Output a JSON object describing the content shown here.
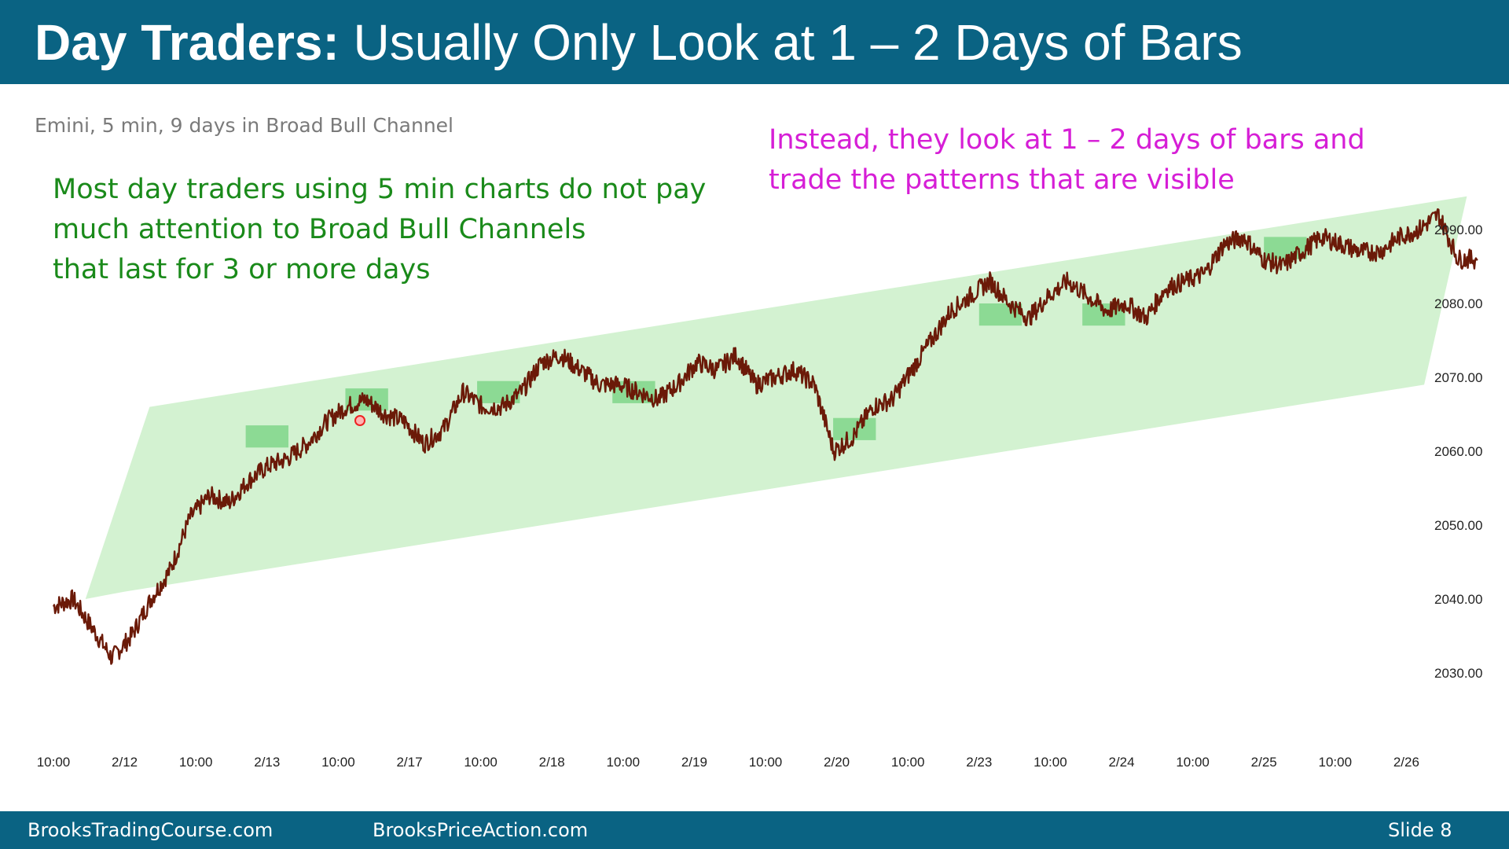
{
  "header": {
    "title_bold": "Day Traders:",
    "title_rest": " Usually Only Look at 1 – 2 Days of Bars"
  },
  "subtitle": "Emini, 5 min, 9 days in Broad Bull Channel",
  "notes": {
    "green": [
      "Most day traders using 5 min charts do not pay",
      "much attention to Broad Bull Channels",
      "that last for 3 or more days"
    ],
    "magenta": [
      "Instead, they look at 1 – 2 days of bars and",
      "trade the patterns that are visible"
    ]
  },
  "footer": {
    "left": "BrooksTradingCourse.com",
    "middle": "BrooksPriceAction.com",
    "right": "Slide  8"
  },
  "colors": {
    "header_bg": "#0a6383",
    "price": "#6b1a08",
    "channel": "#d3f2d1",
    "highlight": "#7fd68a",
    "green_text": "#1a8a1a",
    "magenta_text": "#d61ed6"
  },
  "chart_data": {
    "type": "line",
    "title": "Emini, 5 min, 9 days in Broad Bull Channel",
    "ylim": [
      2022,
      2097
    ],
    "yticks": [
      2030,
      2040,
      2050,
      2060,
      2070,
      2080,
      2090
    ],
    "ytick_labels": [
      "2030.00",
      "2040.00",
      "2050.00",
      "2060.00",
      "2070.00",
      "2080.00",
      "2090.00"
    ],
    "xtick_labels": [
      "10:00",
      "2/12",
      "10:00",
      "2/13",
      "10:00",
      "2/17",
      "10:00",
      "2/18",
      "10:00",
      "2/19",
      "10:00",
      "2/20",
      "10:00",
      "2/23",
      "10:00",
      "2/24",
      "10:00",
      "2/25",
      "10:00",
      "2/26"
    ],
    "x": [
      0,
      0.5,
      1,
      1.5,
      2,
      2.5,
      3,
      3.5,
      4,
      4.5,
      5,
      5.5,
      6,
      6.5,
      7,
      7.5,
      8,
      8.5,
      9,
      9.5,
      10,
      10.5,
      11,
      11.5,
      12,
      12.5,
      13,
      13.5,
      14,
      14.5,
      15,
      15.5,
      16,
      16.5,
      17,
      17.5,
      18,
      18.5,
      19,
      19.5,
      20
    ],
    "series": [
      {
        "values": [
          2039,
          2040,
          2036,
          2032,
          2035,
          2040,
          2044,
          2051,
          2054,
          2053,
          2056,
          2058,
          2059,
          2061,
          2064,
          2066,
          2067,
          2065,
          2064,
          2061,
          2063,
          2068,
          2066,
          2066,
          2068,
          2072,
          2073,
          2071,
          2069,
          2069,
          2068,
          2067,
          2069,
          2072,
          2071,
          2073,
          2069,
          2070,
          2071,
          2069,
          2060
        ],
        "values_cont": [
          2062,
          2066,
          2067,
          2071,
          2075,
          2079,
          2081,
          2083,
          2080,
          2078,
          2081,
          2083,
          2081,
          2079,
          2080,
          2078,
          2082,
          2083,
          2084,
          2088,
          2089,
          2086,
          2085,
          2087,
          2089,
          2088,
          2087,
          2087,
          2089,
          2090,
          2092,
          2086,
          2086
        ]
      }
    ],
    "highlight_boxes": [
      {
        "x0": 2.7,
        "x1": 3.3,
        "y0": 2060.5,
        "y1": 2063.5
      },
      {
        "x0": 4.1,
        "x1": 4.7,
        "y0": 2065.5,
        "y1": 2068.5
      },
      {
        "x0": 5.95,
        "x1": 6.55,
        "y0": 2066.5,
        "y1": 2069.5
      },
      {
        "x0": 7.85,
        "x1": 8.45,
        "y0": 2066.5,
        "y1": 2069.5
      },
      {
        "x0": 10.95,
        "x1": 11.55,
        "y0": 2061.5,
        "y1": 2064.5
      },
      {
        "x0": 13.0,
        "x1": 13.6,
        "y0": 2077,
        "y1": 2080
      },
      {
        "x0": 14.45,
        "x1": 15.05,
        "y0": 2077,
        "y1": 2080
      },
      {
        "x0": 17.0,
        "x1": 17.6,
        "y0": 2086,
        "y1": 2089
      }
    ],
    "channel_polygon": [
      [
        0.45,
        2040
      ],
      [
        1.35,
        2066
      ],
      [
        19.85,
        2094.5
      ],
      [
        19.25,
        2069
      ],
      [
        1.0,
        2041
      ]
    ],
    "grid": false,
    "legend": "none"
  }
}
